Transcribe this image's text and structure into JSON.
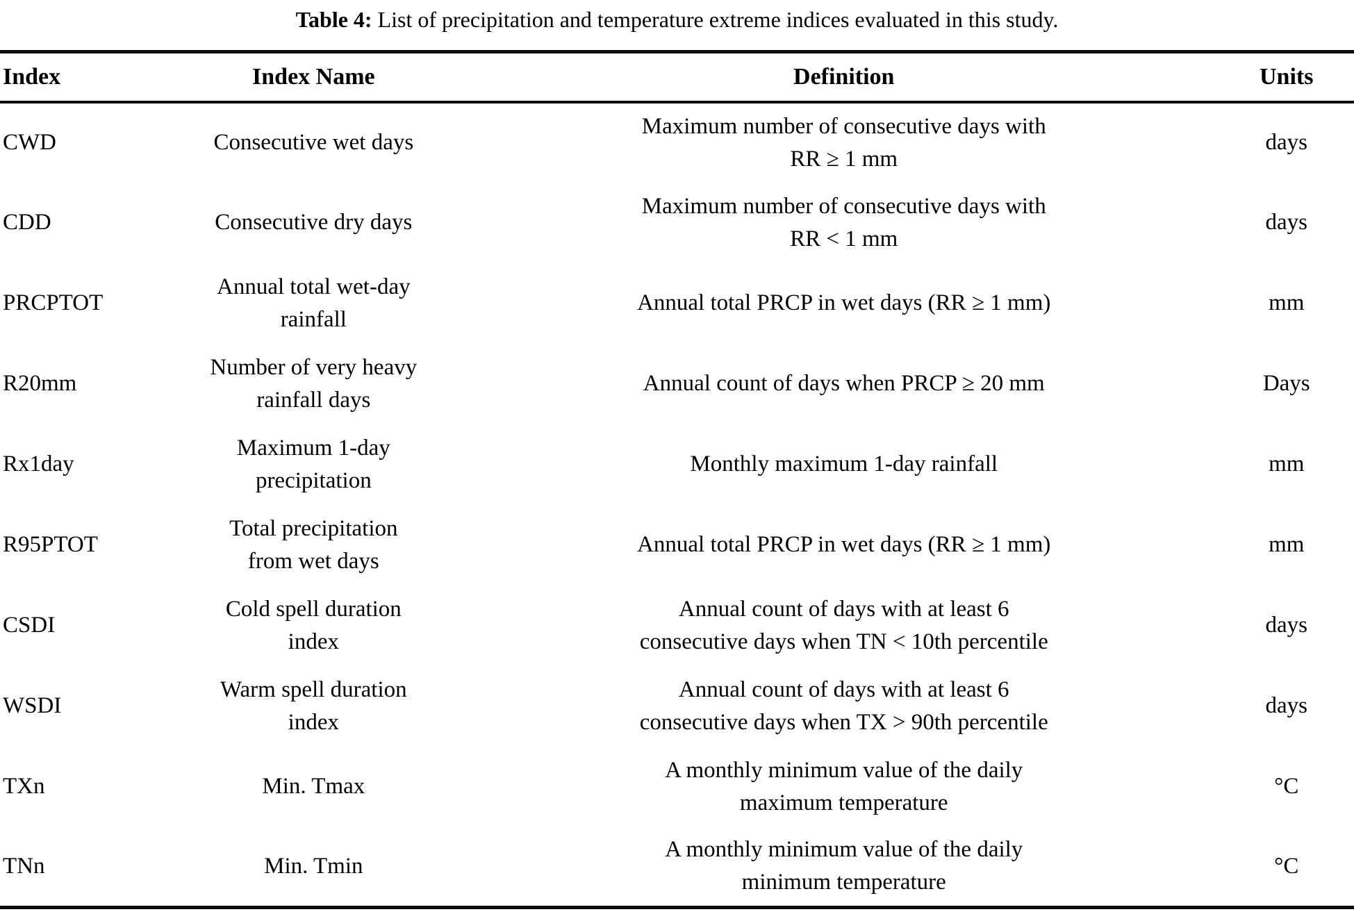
{
  "caption": {
    "label": "Table 4:",
    "text": " List of precipitation and temperature extreme indices evaluated in this study."
  },
  "colors": {
    "background": "#ffffff",
    "text": "#000000",
    "rule": "#0a0a0a"
  },
  "table": {
    "headers": {
      "index": "Index",
      "name": "Index Name",
      "definition": "Definition",
      "units": "Units"
    },
    "rows": [
      {
        "index": "CWD",
        "name": "Consecutive wet days",
        "definition": "Maximum number of consecutive days with\nRR ≥ 1 mm",
        "units": "days"
      },
      {
        "index": "CDD",
        "name": "Consecutive dry days",
        "definition": "Maximum number of consecutive days with\nRR < 1 mm",
        "units": "days"
      },
      {
        "index": "PRCPTOT",
        "name": "Annual total wet-day\nrainfall",
        "definition": "Annual total PRCP in wet days (RR ≥ 1 mm)",
        "units": "mm"
      },
      {
        "index": "R20mm",
        "name": "Number of very heavy\nrainfall days",
        "definition": "Annual count of days when PRCP ≥ 20 mm",
        "units": "Days"
      },
      {
        "index": "Rx1day",
        "name": "Maximum 1-day\nprecipitation",
        "definition": "Monthly maximum 1-day rainfall",
        "units": "mm"
      },
      {
        "index": "R95PTOT",
        "name": "Total precipitation\nfrom wet days",
        "definition": "Annual total PRCP in wet days (RR ≥ 1 mm)",
        "units": "mm"
      },
      {
        "index": "CSDI",
        "name": "Cold spell duration\nindex",
        "definition": "Annual count of days with at least 6\nconsecutive days when TN < 10th percentile",
        "units": "days"
      },
      {
        "index": "WSDI",
        "name": "Warm spell duration\nindex",
        "definition": "Annual count of days with at least 6\nconsecutive days when TX > 90th percentile",
        "units": "days"
      },
      {
        "index": "TXn",
        "name": "Min. Tmax",
        "definition": "A monthly minimum value of the daily\nmaximum temperature",
        "units": "°C"
      },
      {
        "index": "TNn",
        "name": "Min. Tmin",
        "definition": "A monthly minimum value of the daily\nminimum temperature",
        "units": "°C"
      }
    ]
  }
}
